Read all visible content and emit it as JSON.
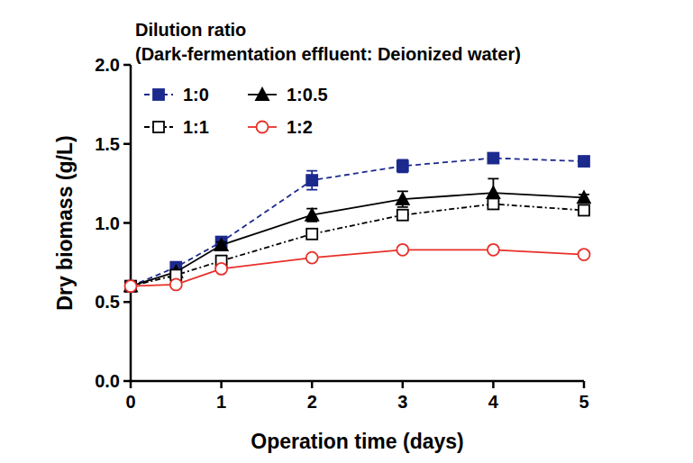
{
  "chart_data": {
    "type": "line",
    "title": "Dilution ratio",
    "subtitle": "(Dark-fermentation effluent: Deionized water)",
    "x_label": "Operation time (days)",
    "y_label": "Dry biomass (g/L)",
    "x": [
      0,
      0.5,
      1,
      2,
      3,
      4,
      5
    ],
    "xlim": [
      0,
      5
    ],
    "xticks": [
      0,
      1,
      2,
      3,
      4,
      5
    ],
    "ylim": [
      0,
      2.0
    ],
    "yticks": [
      {
        "value": 0,
        "label": "0.0"
      },
      {
        "value": 0.5,
        "label": "0.5"
      },
      {
        "value": 1.0,
        "label": "1.0"
      },
      {
        "value": 1.5,
        "label": "1.5"
      },
      {
        "value": 2.0,
        "label": "2.0"
      }
    ],
    "legend": "top-left",
    "grid": false,
    "series": [
      {
        "name": "1:0",
        "color": "#1c2a8e",
        "marker": "square",
        "line_style": "dashed",
        "values": [
          0.6,
          0.72,
          0.88,
          1.27,
          1.36,
          1.41,
          1.39
        ],
        "errors": [
          0.0,
          0.01,
          0.02,
          0.06,
          0.04,
          0.01,
          0.01
        ]
      },
      {
        "name": "1:0.5",
        "color": "#000000",
        "marker": "triangle",
        "line_style": "solid",
        "values": [
          0.6,
          0.69,
          0.86,
          1.05,
          1.15,
          1.19,
          1.16
        ],
        "errors": [
          0.0,
          0.01,
          0.02,
          0.04,
          0.05,
          0.09,
          0.02
        ]
      },
      {
        "name": "1:1",
        "color": "#000000",
        "marker": "open-square",
        "line_style": "dash-dot",
        "values": [
          0.6,
          0.67,
          0.76,
          0.93,
          1.05,
          1.12,
          1.08
        ],
        "errors": [
          0.0,
          0.01,
          0.02,
          0.01,
          0.02,
          0.03,
          0.02
        ]
      },
      {
        "name": "1:2",
        "color": "#e8302a",
        "marker": "open-circle",
        "line_style": "solid",
        "values": [
          0.6,
          0.61,
          0.71,
          0.78,
          0.83,
          0.83,
          0.8
        ],
        "errors": [
          0.0,
          0.01,
          0.01,
          0.01,
          0.01,
          0.01,
          0.01
        ]
      }
    ]
  }
}
